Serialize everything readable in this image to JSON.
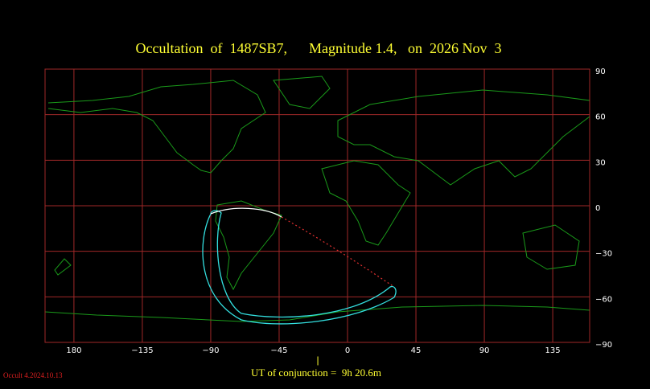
{
  "chart_data": {
    "type": "map",
    "title": "Occultation  of  1487SB7,      Magnitude 1.4,   on  2026 Nov  3",
    "xlim": [
      -199,
      159.3
    ],
    "ylim": [
      -90,
      90
    ],
    "xticks": [
      {
        "value": -180,
        "label": "180"
      },
      {
        "value": -135,
        "label": "−135"
      },
      {
        "value": -90,
        "label": "−90"
      },
      {
        "value": -45,
        "label": "−45"
      },
      0,
      45,
      90,
      135
    ],
    "yticks": [
      90,
      60,
      30,
      0,
      {
        "value": -30,
        "label": "−30"
      },
      {
        "value": -60,
        "label": "−60"
      },
      {
        "value": -90,
        "label": "−90"
      }
    ],
    "grid": true,
    "footer": "UT of conjunction =  9h 20.6m",
    "credit": "Occult 4.2024.10.13"
  }
}
